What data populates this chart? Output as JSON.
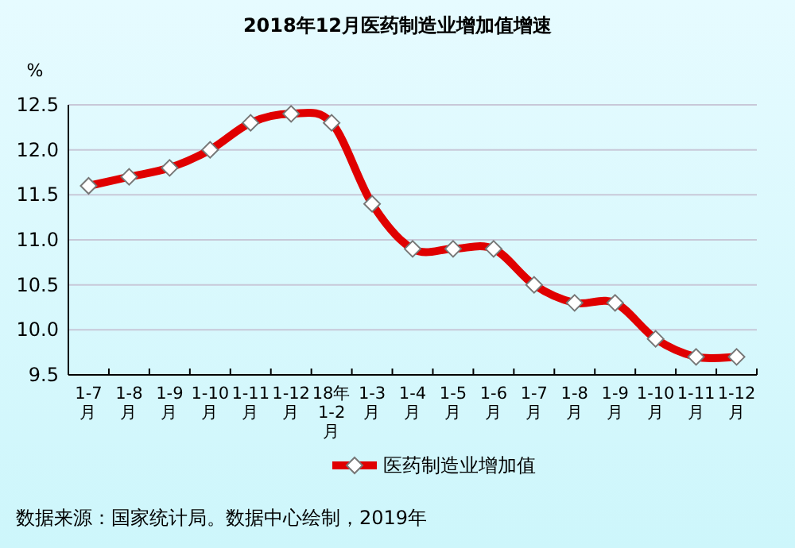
{
  "chart_data": {
    "type": "line",
    "title": "2018年12月医药制造业增加值增速",
    "ylabel": "%",
    "categories": [
      "1-7月",
      "1-8月",
      "1-9月",
      "1-10月",
      "1-11月",
      "1-12月",
      "18年1-2月",
      "1-3月",
      "1-4月",
      "1-5月",
      "1-6月",
      "1-7月",
      "1-8月",
      "1-9月",
      "1-10月",
      "1-11月",
      "1-12月"
    ],
    "series": [
      {
        "name": "医药制造业增加值",
        "color": "#e00000",
        "values": [
          11.6,
          11.7,
          11.8,
          12.0,
          12.3,
          12.4,
          12.3,
          11.4,
          10.9,
          10.9,
          10.9,
          10.5,
          10.3,
          10.3,
          9.9,
          9.7,
          9.7
        ]
      }
    ],
    "ylim": [
      9.5,
      12.5
    ],
    "yticks": [
      {
        "value": 9.5,
        "label": "9.5"
      },
      {
        "value": 10,
        "label": "10.0"
      },
      {
        "value": 10.5,
        "label": "10.5"
      },
      {
        "value": 11,
        "label": "11.0"
      },
      {
        "value": 11.5,
        "label": "11.5"
      },
      {
        "value": 12,
        "label": "12.0"
      },
      {
        "value": 12.5,
        "label": "12.5"
      }
    ],
    "grid": "y",
    "legend": "bottom",
    "marker": "diamond",
    "line_style": "solid",
    "annotations": [
      "数据来源：国家统计局。数据中心绘制，2019年"
    ]
  }
}
